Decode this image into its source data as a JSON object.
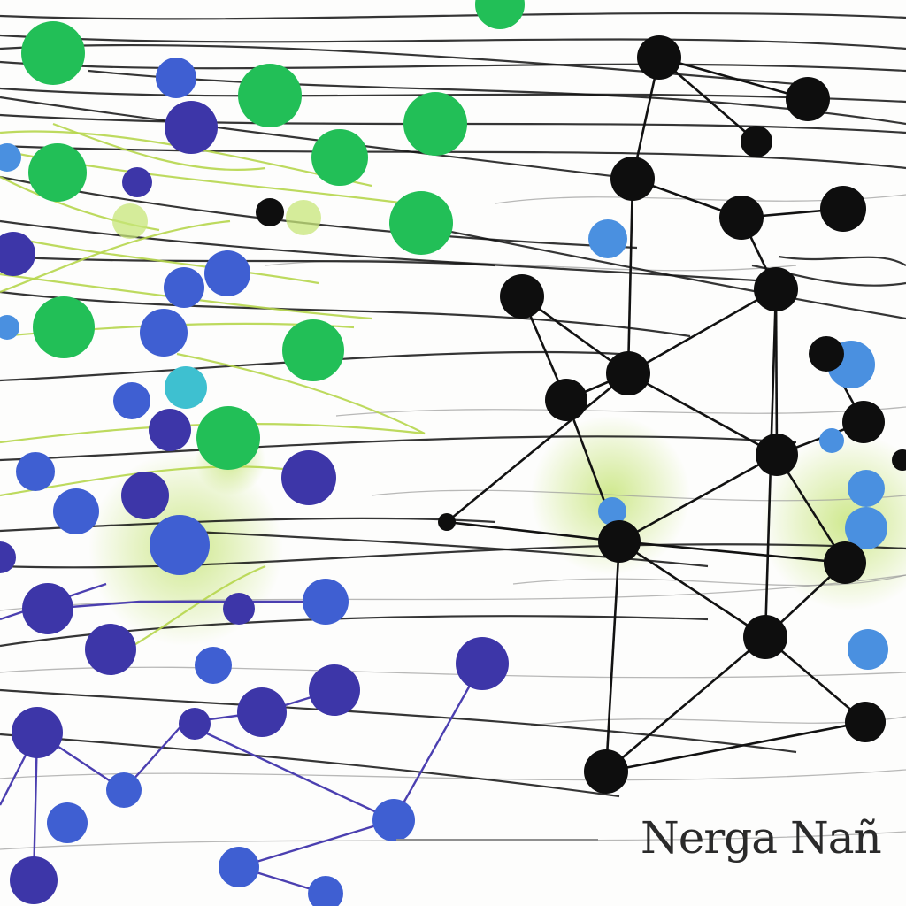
{
  "caption": "Nerga Nañ",
  "colors": {
    "background": "#fdfdfc",
    "edge_black": "#121212",
    "edge_gray": "#9a9a9a",
    "edge_lime": "#b6d64c",
    "edge_purple": "#4b3fb0",
    "node_green": "#22bf57",
    "node_indigo": "#3d36a8",
    "node_blue": "#3f5fd2",
    "node_sky": "#4a90e0",
    "node_cyan": "#3ec0d0",
    "node_black": "#0e0e0e",
    "glow": "#c7e57a"
  },
  "icons": {
    "node": "circle-node-icon",
    "edge": "line-edge-icon",
    "glow": "radial-glow-icon"
  }
}
